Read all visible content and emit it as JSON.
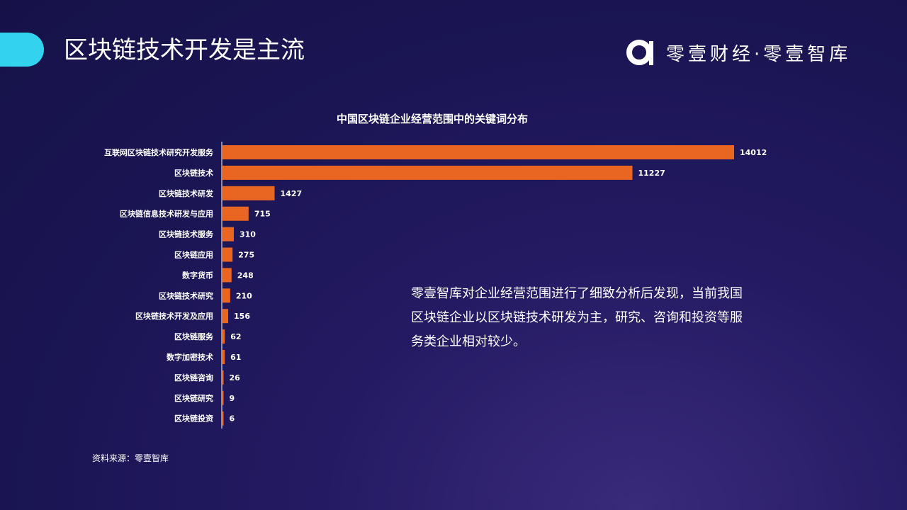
{
  "header": {
    "title": "区块链技术开发是主流",
    "brand_text": "零壹财经·零壹智库",
    "brand_logo_icon": "letter-a-logo-icon"
  },
  "colors": {
    "accent": "#33d3f0",
    "bar": "#e86622",
    "background": "#1b1554"
  },
  "chart_data": {
    "type": "bar",
    "orientation": "horizontal",
    "title": "中国区块链企业经营范围中的关键词分布",
    "categories": [
      "互联网区块链技术研究开发服务",
      "区块链技术",
      "区块链技术研发",
      "区块链信息技术研发与应用",
      "区块链技术服务",
      "区块链应用",
      "数字货币",
      "区块链技术研究",
      "区块链技术开发及应用",
      "区块链服务",
      "数字加密技术",
      "区块链咨询",
      "区块链研究",
      "区块链投资"
    ],
    "values": [
      14012,
      11227,
      1427,
      715,
      310,
      275,
      248,
      210,
      156,
      62,
      61,
      26,
      9,
      6
    ],
    "data_labels": true,
    "grid": false,
    "legend": "none"
  },
  "commentary": "零壹智库对企业经营范围进行了细致分析后发现，当前我国区块链企业以区块链技术研发为主，研究、咨询和投资等服务类企业相对较少。",
  "source": "资料来源：零壹智库"
}
